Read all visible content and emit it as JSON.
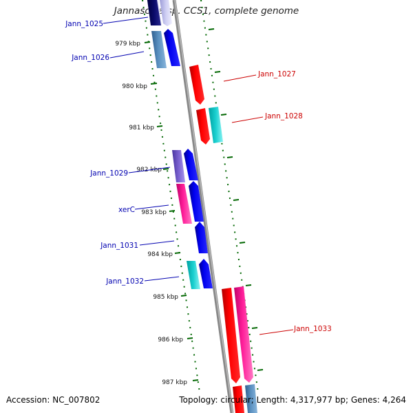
{
  "title": "Jannaschia sp. CCS1, complete genome",
  "footer": {
    "accession": "Accession: NC_007802",
    "topology": "Topology: circular; Length: 4,317,977 bp; Genes: 4,264"
  },
  "ticks": [
    "979 kbp",
    "980 kbp",
    "981 kbp",
    "982 kbp",
    "983 kbp",
    "984 kbp",
    "985 kbp",
    "986 kbp",
    "987 kbp"
  ],
  "gene_labels": [
    {
      "name": "Jann_1025",
      "strand": "reverse"
    },
    {
      "name": "Jann_1026",
      "strand": "reverse"
    },
    {
      "name": "Jann_1027",
      "strand": "forward"
    },
    {
      "name": "Jann_1028",
      "strand": "forward"
    },
    {
      "name": "Jann_1029",
      "strand": "reverse"
    },
    {
      "name": "xerC",
      "strand": "reverse"
    },
    {
      "name": "Jann_1031",
      "strand": "reverse"
    },
    {
      "name": "Jann_1032",
      "strand": "reverse"
    },
    {
      "name": "Jann_1033",
      "strand": "forward"
    }
  ],
  "colors": {
    "reverse_label": "#0000b0",
    "forward_label": "#cc0000",
    "backbone": "#888888",
    "tick": "#006600",
    "blue": "#0000ee",
    "red": "#ff0000",
    "slate": "#4a7fb0",
    "navy": "#0a0a6a",
    "lavender": "#c8c8f0",
    "purple": "#7a62d0",
    "pink": "#ff1f9a",
    "cyan": "#1ad0d0"
  }
}
